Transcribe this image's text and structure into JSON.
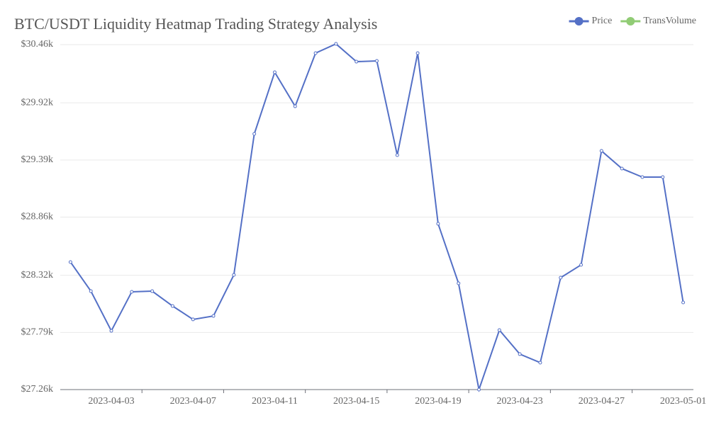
{
  "chart_data": {
    "type": "line",
    "title": "BTC/USDT Liquidity Heatmap Trading Strategy Analysis",
    "categories": [
      null,
      null,
      "2023-04-03",
      null,
      null,
      null,
      "2023-04-07",
      null,
      null,
      null,
      "2023-04-11",
      null,
      null,
      null,
      "2023-04-15",
      null,
      null,
      null,
      "2023-04-19",
      null,
      null,
      null,
      "2023-04-23",
      null,
      null,
      null,
      "2023-04-27",
      null,
      null,
      null,
      "2023-05-01"
    ],
    "series": [
      {
        "name": "Price",
        "color": "#5470c6",
        "values": [
          28443,
          28173,
          27805,
          28167,
          28173,
          28035,
          27911,
          27943,
          28324,
          29632,
          30204,
          29888,
          30381,
          30467,
          30302,
          30309,
          29435,
          30381,
          28798,
          28246,
          27260,
          27812,
          27589,
          27510,
          28298,
          28417,
          29474,
          29310,
          29231,
          29231,
          28068
        ]
      },
      {
        "name": "TransVolume",
        "color": "#91cc75",
        "values": [
          null,
          null,
          null,
          null,
          null,
          null,
          null,
          null,
          null,
          null,
          null,
          null,
          null,
          null,
          null,
          null,
          null,
          null,
          null,
          null,
          null,
          null,
          null,
          null,
          null,
          null,
          null,
          null,
          null,
          null,
          null
        ]
      }
    ],
    "ylim": [
      27260,
      30460
    ],
    "yticks": [
      {
        "value": 27260,
        "label": "$27.26k"
      },
      {
        "value": 27790,
        "label": "$27.79k"
      },
      {
        "value": 28320,
        "label": "$28.32k"
      },
      {
        "value": 28860,
        "label": "$28.86k"
      },
      {
        "value": 29390,
        "label": "$29.39k"
      },
      {
        "value": 29920,
        "label": "$29.92k"
      },
      {
        "value": 30460,
        "label": "$30.46k"
      }
    ],
    "grid": true,
    "legend": "top-right"
  }
}
